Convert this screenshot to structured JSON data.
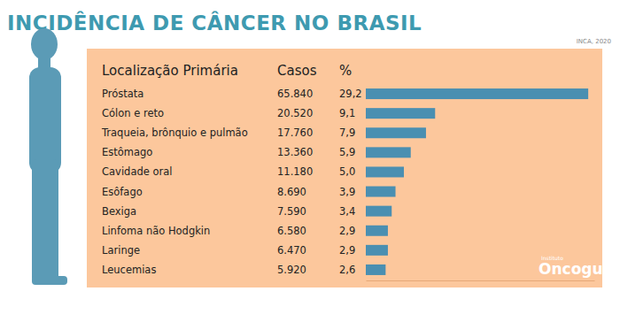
{
  "chart_data": {
    "type": "bar",
    "orientation": "horizontal",
    "title": "INCIDÊNCIA DE CÂNCER NO BRASIL",
    "source": "INCA, 2020",
    "column_headers": [
      "Localização Primária",
      "Casos",
      "%"
    ],
    "categories": [
      "Próstata",
      "Cólon e reto",
      "Traqueia, brônquio e pulmão",
      "Estômago",
      "Cavidade oral",
      "Esôfago",
      "Bexiga",
      "Linfoma não Hodgkin",
      "Laringe",
      "Leucemias"
    ],
    "cases": [
      65840,
      20520,
      17760,
      13360,
      11180,
      8690,
      7590,
      6580,
      6470,
      5920
    ],
    "cases_labels": [
      "65.840",
      "20.520",
      "17.760",
      "13.360",
      "11.180",
      "8.690",
      "7.590",
      "6.580",
      "6.470",
      "5.920"
    ],
    "values": [
      29.2,
      9.1,
      7.9,
      5.9,
      5.0,
      3.9,
      3.4,
      2.9,
      2.9,
      2.6
    ],
    "value_labels": [
      "29,2",
      "9,1",
      "7,9",
      "5,9",
      "5,0",
      "3,9",
      "3,4",
      "2,9",
      "2,9",
      "2,6"
    ],
    "color": "#4a8fb1",
    "xlim": [
      0,
      30
    ],
    "data_labels": true,
    "tick_labels": false,
    "grid": false,
    "logo": {
      "small": "Instituto",
      "name": "Oncoguia"
    }
  }
}
